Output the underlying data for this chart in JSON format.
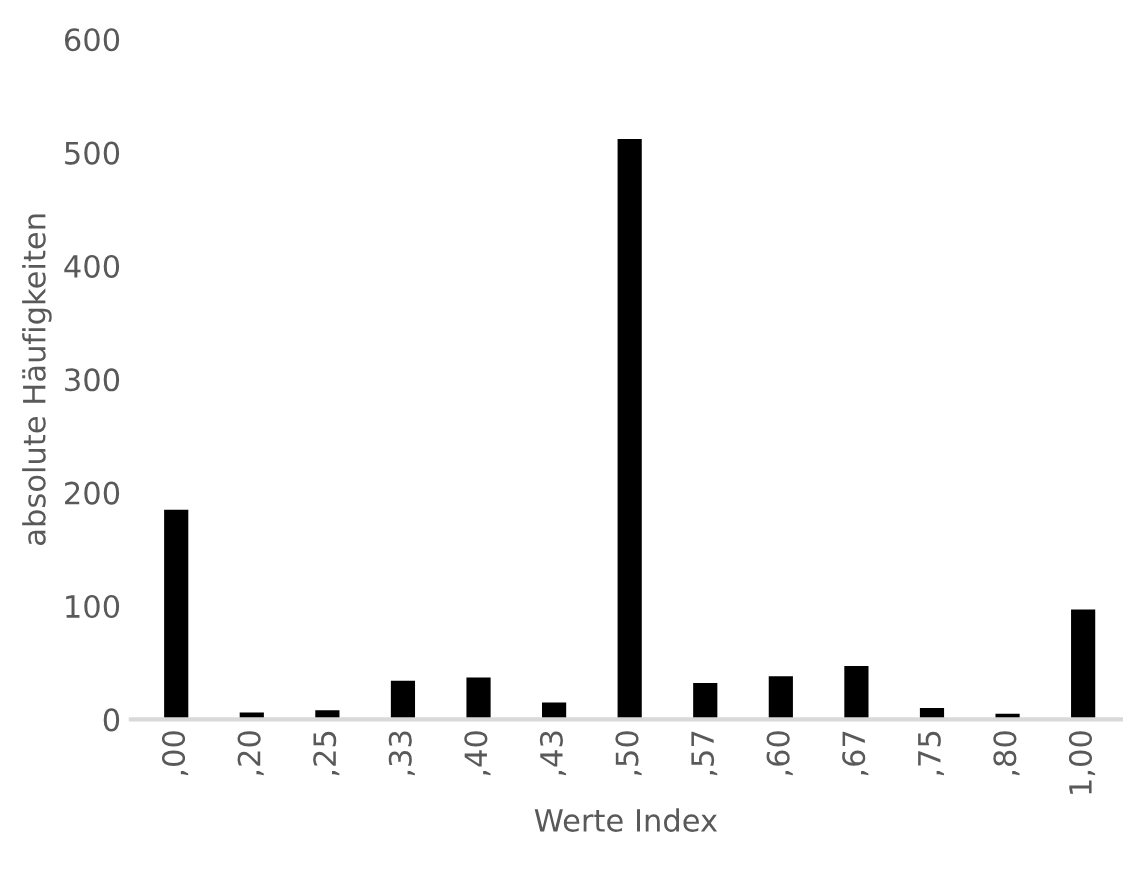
{
  "chart_data": {
    "type": "bar",
    "xlabel": "Werte Index",
    "ylabel": "absolute Häufigkeiten",
    "categories": [
      ",00",
      ",20",
      ",25",
      ",33",
      ",40",
      ",43",
      ",50",
      ",57",
      ",60",
      ",67",
      ",75",
      ",80",
      "1,00"
    ],
    "values": [
      185,
      6,
      8,
      34,
      37,
      15,
      512,
      32,
      38,
      47,
      10,
      5,
      97
    ],
    "color": "#000000",
    "ylim": [
      0,
      600
    ],
    "yticks": [
      0,
      100,
      200,
      300,
      400,
      500,
      600
    ],
    "grid": false,
    "legend": false
  }
}
